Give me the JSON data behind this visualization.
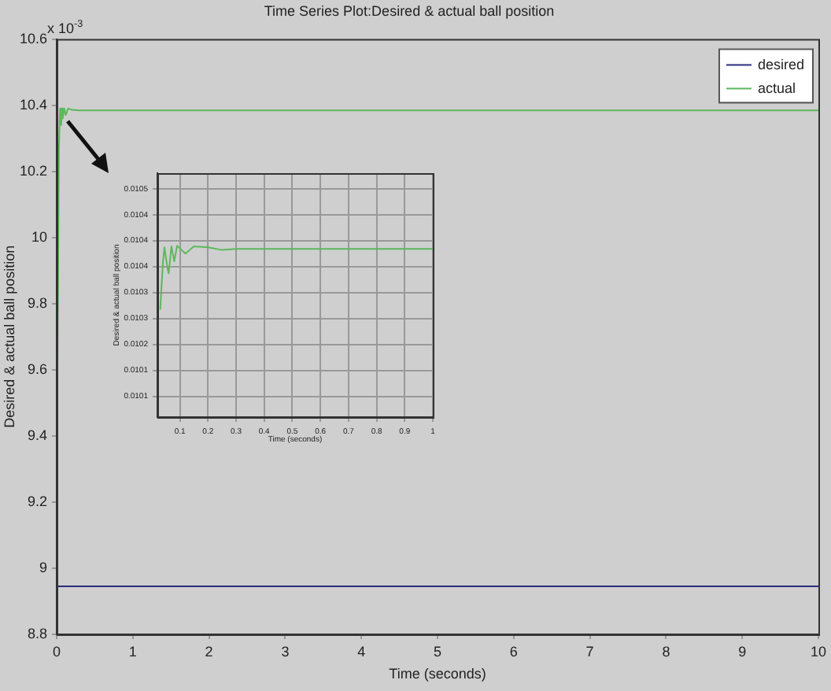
{
  "chart_data": [
    {
      "type": "line",
      "title": "Time Series Plot:Desired & actual ball position",
      "xlabel": "Time (seconds)",
      "ylabel": "Desired & actual ball position",
      "annotations": [
        "x 10$^{-3}$"
      ],
      "xlim": [
        0,
        10
      ],
      "xticks": [
        0,
        1,
        2,
        3,
        4,
        5,
        6,
        7,
        8,
        9,
        10
      ],
      "ylim": [
        8.8,
        10.6
      ],
      "yticks": [
        8.8,
        9,
        9.2,
        9.4,
        9.6,
        9.8,
        10,
        10.2,
        10.4,
        10.6
      ],
      "grid": false,
      "legend": "top right",
      "series": [
        {
          "name": "desired",
          "color": "#2b2b80",
          "x": [
            0,
            10
          ],
          "values": [
            8.945,
            8.945
          ]
        },
        {
          "name": "actual",
          "color": "#5cb85c",
          "x": [
            0.01,
            0.03,
            0.045,
            0.06,
            0.07,
            0.08,
            0.1,
            0.12,
            0.15,
            0.2,
            0.3,
            10
          ],
          "values": [
            9.6,
            10.27,
            10.39,
            10.34,
            10.39,
            10.36,
            10.39,
            10.37,
            10.39,
            10.386,
            10.384,
            10.384
          ]
        }
      ]
    },
    {
      "type": "line",
      "xlabel": "Time (seconds)",
      "ylabel": "Desired & actual ball position",
      "xlim": [
        0.02,
        1
      ],
      "xticks": [
        0.1,
        0.2,
        0.3,
        0.4,
        0.5,
        0.6,
        0.7,
        0.8,
        0.9,
        1
      ],
      "ylim": [
        0.01006,
        0.01053
      ],
      "yticks": [
        {
          "value": 0.0105,
          "label": "0.0105"
        },
        {
          "value": 0.01045,
          "label": "0.0104"
        },
        {
          "value": 0.0104,
          "label": "0.0104"
        },
        {
          "value": 0.01035,
          "label": "0.0104"
        },
        {
          "value": 0.0103,
          "label": "0.0103"
        },
        {
          "value": 0.01025,
          "label": "0.0103"
        },
        {
          "value": 0.0102,
          "label": "0.0102"
        },
        {
          "value": 0.01015,
          "label": "0.0101"
        },
        {
          "value": 0.0101,
          "label": "0.0101"
        }
      ],
      "grid": true,
      "series": [
        {
          "color": "#5cb85c",
          "x": [
            0.03,
            0.04,
            0.045,
            0.055,
            0.06,
            0.07,
            0.08,
            0.09,
            0.1,
            0.12,
            0.15,
            0.2,
            0.25,
            0.3,
            1
          ],
          "values": [
            0.010267,
            0.01036,
            0.010387,
            0.01035,
            0.010337,
            0.010389,
            0.01036,
            0.01039,
            0.010385,
            0.010375,
            0.010389,
            0.010387,
            0.010382,
            0.010384,
            0.010384
          ]
        }
      ]
    }
  ]
}
